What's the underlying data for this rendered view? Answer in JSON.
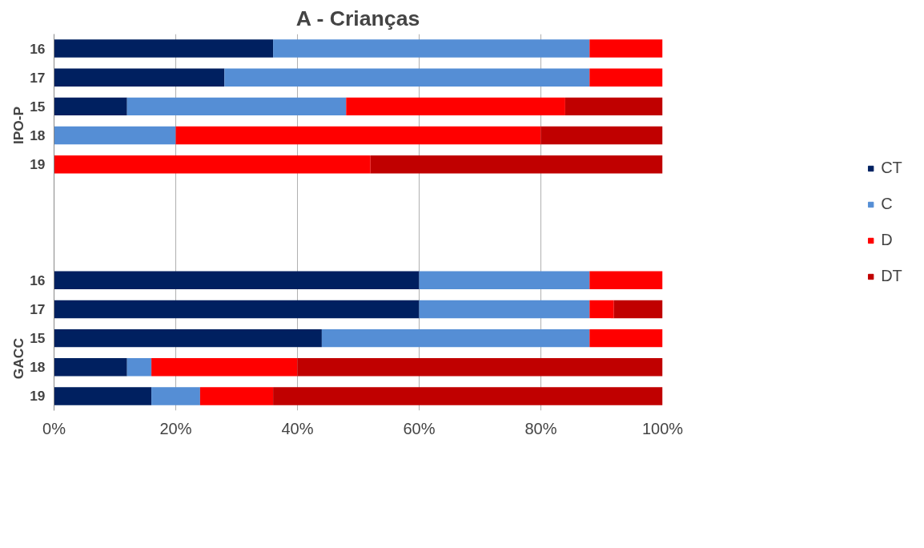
{
  "chart_data": {
    "type": "bar",
    "orientation": "horizontal",
    "stacked": true,
    "title": "A - Crianças",
    "categories": [
      "16",
      "17",
      "15",
      "18",
      "19",
      null,
      null,
      null,
      "16",
      "17",
      "15",
      "18",
      "19"
    ],
    "series": [
      {
        "name": "CT",
        "color": "#002060",
        "values": [
          36,
          28,
          12,
          0,
          0,
          null,
          null,
          null,
          60,
          60,
          44,
          12,
          16
        ]
      },
      {
        "name": "C",
        "color": "#558ed5",
        "values": [
          52,
          60,
          36,
          20,
          0,
          null,
          null,
          null,
          28,
          28,
          44,
          4,
          8
        ]
      },
      {
        "name": "D",
        "color": "#ff0000",
        "values": [
          12,
          12,
          36,
          60,
          52,
          null,
          null,
          null,
          12,
          4,
          12,
          24,
          12
        ]
      },
      {
        "name": "DT",
        "color": "#c00000",
        "values": [
          0,
          0,
          16,
          20,
          48,
          null,
          null,
          null,
          0,
          8,
          0,
          60,
          64
        ]
      }
    ],
    "annotations": [
      "IPO-P",
      "GACC"
    ],
    "xlim": [
      0,
      100
    ],
    "xticks": [
      {
        "value": 0,
        "label": "0%"
      },
      {
        "value": 20,
        "label": "20%"
      },
      {
        "value": 40,
        "label": "40%"
      },
      {
        "value": 60,
        "label": "60%"
      },
      {
        "value": 80,
        "label": "80%"
      },
      {
        "value": 100,
        "label": "100%"
      }
    ],
    "grid": "x",
    "legend": "right"
  }
}
